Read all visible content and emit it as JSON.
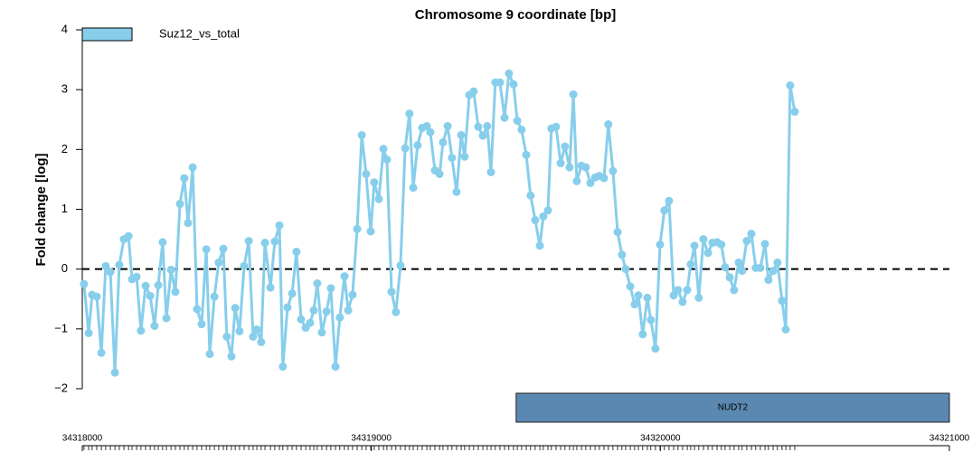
{
  "chart_data": {
    "type": "line",
    "title": "Chromosome 9 coordinate [bp]",
    "y_label": "Fold change [log]",
    "xlim": [
      34318000,
      34321000
    ],
    "xticks": [
      34318000,
      34319000,
      34320000,
      34321000
    ],
    "ylim": [
      -2,
      4
    ],
    "yticks": [
      {
        "value": -2,
        "label": "−2"
      },
      {
        "value": -1,
        "label": "−1"
      },
      0,
      1,
      2,
      3,
      4
    ],
    "reference_line": 0,
    "legend": "top-left",
    "x": [
      34318006,
      34318022,
      34318034,
      34318050,
      34318066,
      34318081,
      34318097,
      34318113,
      34318128,
      34318144,
      34318160,
      34318172,
      34318188,
      34318203,
      34318219,
      34318235,
      34318250,
      34318263,
      34318278,
      34318291,
      34318307,
      34318322,
      34318338,
      34318353,
      34318366,
      34318382,
      34318397,
      34318413,
      34318429,
      34318441,
      34318457,
      34318472,
      34318488,
      34318500,
      34318516,
      34318529,
      34318544,
      34318560,
      34318576,
      34318591,
      34318604,
      34318619,
      34318632,
      34318651,
      34318666,
      34318682,
      34318694,
      34318710,
      34318726,
      34318741,
      34318757,
      34318773,
      34318788,
      34318801,
      34318813,
      34318829,
      34318845,
      34318860,
      34318876,
      34318891,
      34318907,
      34318920,
      34318935,
      34318951,
      34318967,
      34318982,
      34318998,
      34319010,
      34319026,
      34319042,
      34319054,
      34319070,
      34319085,
      34319101,
      34319117,
      34319132,
      34319145,
      34319160,
      34319176,
      34319192,
      34319204,
      34319220,
      34319236,
      34319248,
      34319264,
      34319279,
      34319295,
      34319311,
      34319323,
      34319339,
      34319354,
      34319370,
      34319386,
      34319401,
      34319414,
      34319429,
      34319445,
      34319461,
      34319476,
      34319492,
      34319505,
      34319520,
      34319536,
      34319551,
      34319567,
      34319583,
      34319595,
      34319611,
      34319623,
      34319639,
      34319655,
      34319670,
      34319686,
      34319699,
      34319711,
      34319727,
      34319742,
      34319758,
      34319774,
      34319789,
      34319805,
      34319820,
      34319836,
      34319852,
      34319867,
      34319880,
      34319896,
      34319911,
      34319924,
      34319939,
      34319955,
      34319967,
      34319983,
      34319999,
      34320014,
      34320030,
      34320046,
      34320061,
      34320077,
      34320093,
      34320105,
      34320118,
      34320133,
      34320149,
      34320165,
      34320180,
      34320196,
      34320211,
      34320224,
      34320240,
      34320255,
      34320271,
      34320283,
      34320299,
      34320315,
      34320330,
      34320346,
      34320362,
      34320374,
      34320390,
      34320405,
      34320421,
      34320434,
      34320449,
      34320465
    ],
    "series": [
      {
        "name": "Suz12_vs_total",
        "color": "#87CEEB",
        "values": [
          -0.25,
          -1.07,
          -0.43,
          -0.46,
          -1.4,
          0.05,
          -0.05,
          -1.73,
          0.07,
          0.5,
          0.55,
          -0.17,
          -0.13,
          -1.03,
          -0.28,
          -0.45,
          -0.95,
          -0.27,
          0.45,
          -0.82,
          -0.01,
          -0.38,
          1.09,
          1.52,
          0.77,
          1.7,
          -0.67,
          -0.92,
          0.33,
          -1.42,
          -0.46,
          0.11,
          0.34,
          -1.13,
          -1.46,
          -0.65,
          -1.04,
          0.05,
          0.47,
          -1.13,
          -1.01,
          -1.22,
          0.44,
          -0.31,
          0.46,
          0.73,
          -1.63,
          -0.64,
          -0.41,
          0.29,
          -0.84,
          -0.98,
          -0.9,
          -0.69,
          -0.24,
          -1.06,
          -0.71,
          -0.32,
          -1.63,
          -0.81,
          -0.12,
          -0.69,
          -0.43,
          0.67,
          2.24,
          1.59,
          0.63,
          1.45,
          1.17,
          2.01,
          1.83,
          -0.38,
          -0.72,
          0.06,
          2.02,
          2.6,
          1.36,
          2.07,
          2.36,
          2.39,
          2.29,
          1.65,
          1.59,
          2.12,
          2.39,
          1.86,
          1.29,
          2.24,
          1.88,
          2.91,
          2.97,
          2.38,
          2.23,
          2.39,
          1.62,
          3.12,
          3.12,
          2.53,
          3.27,
          3.09,
          2.48,
          2.33,
          1.91,
          1.23,
          0.82,
          0.39,
          0.88,
          0.98,
          2.35,
          2.38,
          1.77,
          2.05,
          1.7,
          2.92,
          1.47,
          1.73,
          1.7,
          1.44,
          1.53,
          1.56,
          1.52,
          2.42,
          1.64,
          0.62,
          0.24,
          0,
          -0.29,
          -0.59,
          -0.44,
          -1.09,
          -0.48,
          -0.85,
          -1.33,
          0.41,
          0.98,
          1.14,
          -0.44,
          -0.35,
          -0.55,
          -0.35,
          0.08,
          0.39,
          -0.48,
          0.5,
          0.27,
          0.44,
          0.45,
          0.41,
          0.03,
          -0.14,
          -0.35,
          0.11,
          -0.03,
          0.47,
          0.59,
          0.02,
          0.02,
          0.42,
          -0.18,
          -0.03,
          0.11,
          -0.53,
          -1.01,
          3.07,
          2.63
        ]
      }
    ],
    "gene": {
      "name": "NUDT2",
      "start": 34319501,
      "end": 34321000,
      "color": "#5B88B0"
    }
  }
}
